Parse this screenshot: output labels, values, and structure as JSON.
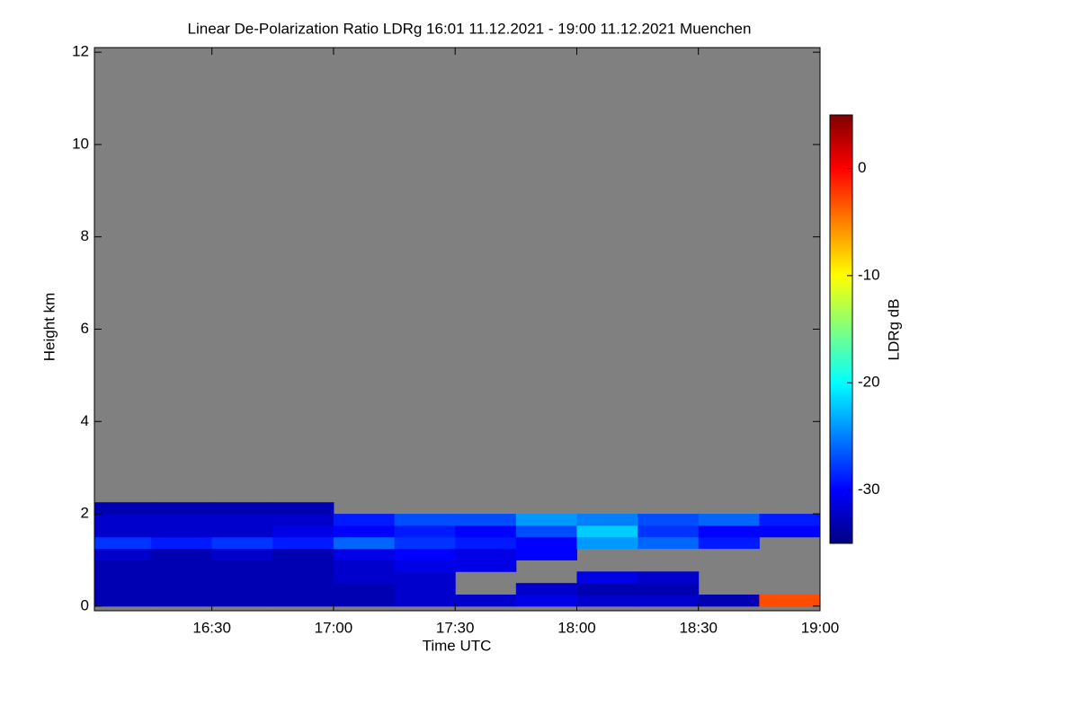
{
  "chart_data": {
    "type": "heatmap",
    "title": "Linear De-Polarization Ratio LDRg   16:01 11.12.2021 - 19:00 11.12.2021 Muenchen",
    "x_label": "Time UTC",
    "y_label": "Height km",
    "colorbar_label": "LDRg dB",
    "colorscale": "jet",
    "missing_color": "#808080",
    "xlim": [
      16.017,
      19.0
    ],
    "xticks": [
      {
        "value": 16.5,
        "label": "16:30"
      },
      {
        "value": 17.0,
        "label": "17:00"
      },
      {
        "value": 17.5,
        "label": "17:30"
      },
      {
        "value": 18.0,
        "label": "18:00"
      },
      {
        "value": 18.5,
        "label": "18:30"
      },
      {
        "value": 19.0,
        "label": "19:00"
      }
    ],
    "ylim": [
      -0.1,
      12.1
    ],
    "yticks": [
      0,
      2,
      4,
      6,
      8,
      10,
      12
    ],
    "zlim": [
      -35,
      5
    ],
    "zticks": [
      0,
      -10,
      -20,
      -30
    ],
    "x": [
      16.125,
      16.375,
      16.625,
      16.875,
      17.125,
      17.375,
      17.625,
      17.875,
      18.125,
      18.375,
      18.625,
      18.875
    ],
    "y": [
      0.125,
      0.375,
      0.625,
      0.875,
      1.125,
      1.375,
      1.625,
      1.875,
      2.125
    ],
    "z": [
      [
        -33,
        -33,
        -33,
        -33,
        -33,
        -32,
        -32,
        -31,
        -32,
        -32,
        -33,
        -3
      ],
      [
        -33,
        -33,
        -33,
        -33,
        -33,
        -32,
        null,
        -32,
        -33,
        -33,
        null,
        null
      ],
      [
        -33,
        -33,
        -33,
        -33,
        -32,
        -32,
        null,
        null,
        -31,
        -32,
        null,
        null
      ],
      [
        -33,
        -33,
        -33,
        -33,
        -32,
        -31,
        -31,
        null,
        null,
        null,
        null,
        null
      ],
      [
        -32,
        -33,
        -32,
        -33,
        -31,
        -30,
        -31,
        -30,
        null,
        null,
        null,
        null
      ],
      [
        -28,
        -29,
        -28,
        -29,
        -26,
        -28,
        -29,
        -30,
        -24,
        -26,
        -29,
        null
      ],
      [
        -32,
        -32,
        -32,
        -31,
        -30,
        -29,
        -30,
        -27,
        -22,
        -28,
        -30,
        -30
      ],
      [
        -32,
        -32,
        -32,
        -32,
        -29,
        -27,
        -27,
        -24,
        -25,
        -27,
        -26,
        -29
      ],
      [
        -33,
        -33,
        -33,
        -33,
        null,
        null,
        null,
        null,
        null,
        null,
        null,
        null
      ]
    ]
  }
}
